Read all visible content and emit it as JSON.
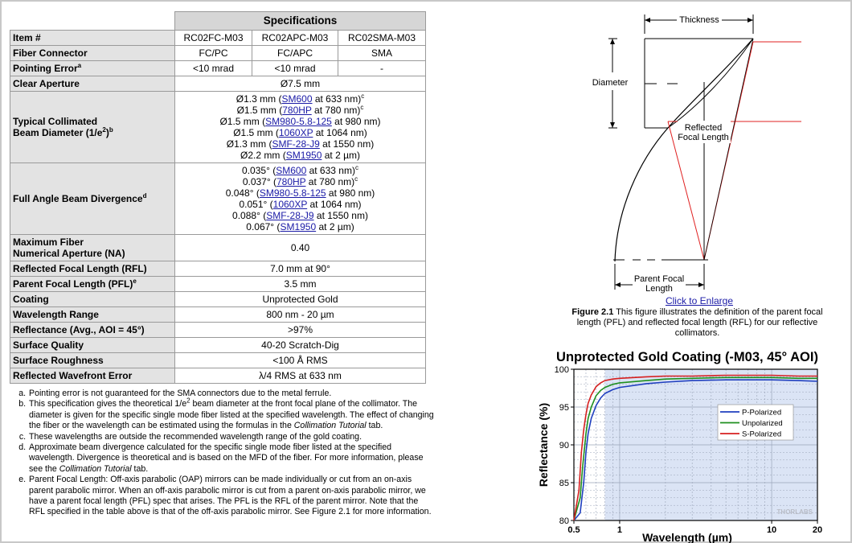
{
  "spec_table": {
    "title": "Specifications",
    "item_label": "Item #",
    "items": [
      "RC02FC-M03",
      "RC02APC-M03",
      "RC02SMA-M03"
    ],
    "rows": {
      "fiber_connector": {
        "label": "Fiber Connector",
        "values": [
          "FC/PC",
          "FC/APC",
          "SMA"
        ]
      },
      "pointing_error": {
        "label": "Pointing Error",
        "sup": "a",
        "values": [
          "<10 mrad",
          "<10 mrad",
          "-"
        ]
      },
      "clear_aperture": {
        "label": "Clear Aperture",
        "value": "Ø7.5 mm"
      },
      "beam_diameter": {
        "label_line1": "Typical Collimated",
        "label_line2": "Beam Diameter (1/e",
        "label_sup2": "2",
        "label_end": ")",
        "label_sup": "b",
        "lines": [
          {
            "pre": "Ø1.3 mm (",
            "link": "SM600",
            "post": " at 633 nm)",
            "sup": "c"
          },
          {
            "pre": "Ø1.5 mm (",
            "link": "780HP",
            "post": " at 780 nm)",
            "sup": "c"
          },
          {
            "pre": "Ø1.5 mm (",
            "link": "SM980-5.8-125",
            "post": " at 980 nm)",
            "sup": ""
          },
          {
            "pre": "Ø1.5 mm (",
            "link": "1060XP",
            "post": " at 1064 nm)",
            "sup": ""
          },
          {
            "pre": "Ø1.3 mm (",
            "link": "SMF-28-J9",
            "post": " at 1550 nm)",
            "sup": ""
          },
          {
            "pre": "Ø2.2 mm (",
            "link": "SM1950",
            "post": " at 2 µm)",
            "sup": ""
          }
        ]
      },
      "divergence": {
        "label": "Full Angle Beam Divergence",
        "sup": "d",
        "lines": [
          {
            "pre": "0.035° (",
            "link": "SM600",
            "post": " at 633 nm)",
            "sup": "c"
          },
          {
            "pre": "0.037° (",
            "link": "780HP",
            "post": " at 780 nm)",
            "sup": "c"
          },
          {
            "pre": "0.048° (",
            "link": "SM980-5.8-125",
            "post": " at 980 nm)",
            "sup": ""
          },
          {
            "pre": "0.051° (",
            "link": "1060XP",
            "post": " at 1064 nm)",
            "sup": ""
          },
          {
            "pre": "0.088° (",
            "link": "SMF-28-J9",
            "post": " at 1550 nm)",
            "sup": ""
          },
          {
            "pre": "0.067° (",
            "link": "SM1950",
            "post": " at 2 µm)",
            "sup": ""
          }
        ]
      },
      "na": {
        "label_line1": "Maximum Fiber",
        "label_line2": "Numerical Aperture (NA)",
        "value": "0.40"
      },
      "rfl": {
        "label": "Reflected Focal Length (RFL)",
        "value": "7.0 mm at 90°"
      },
      "pfl": {
        "label": "Parent Focal Length (PFL)",
        "sup": "e",
        "value": "3.5 mm"
      },
      "coating": {
        "label": "Coating",
        "value": "Unprotected Gold"
      },
      "wavelength": {
        "label": "Wavelength Range",
        "value": "800 nm - 20 µm"
      },
      "reflectance": {
        "label": "Reflectance (Avg., AOI = 45°)",
        "value": ">97%"
      },
      "surface_quality": {
        "label": "Surface Quality",
        "value": "40-20 Scratch-Dig"
      },
      "roughness": {
        "label": "Surface Roughness",
        "value": "<100 Å RMS"
      },
      "wavefront": {
        "label": "Reflected Wavefront Error",
        "value": "λ/4 RMS at 633 nm"
      }
    }
  },
  "notes": {
    "a": "Pointing error is not guaranteed for the SMA connectors due to the metal ferrule.",
    "b1": "This specification gives the theoretical 1/e",
    "b_sup": "2",
    "b2": " beam diameter at the front focal plane of the collimator. The diameter is given for the specific single mode fiber listed at the specified wavelength. The effect of changing the fiber or the wavelength can be estimated using the formulas in the ",
    "b_em": "Collimation Tutorial",
    "b3": " tab.",
    "c": "These wavelengths are outside the recommended wavelength range of the gold coating.",
    "d1": "Approximate beam divergence calculated for the specific single mode fiber listed at the specified wavelength. Divergence is theoretical and is based on the MFD of the fiber. For more information, please see the ",
    "d_em": "Collimation Tutorial",
    "d2": " tab.",
    "e": "Parent Focal Length: Off-axis parabolic (OAP) mirrors can be made individually or cut from an on-axis parent parabolic mirror. When an off-axis parabolic mirror is cut from a parent on-axis parabolic mirror, we have a parent focal length (PFL) spec that arises. The PFL is the RFL of the parent mirror. Note that the RFL specified in the table above is that of the off-axis parabolic mirror. See Figure 2.1 for more information."
  },
  "figure": {
    "thickness": "Thickness",
    "diameter": "Diameter",
    "rfl_line1": "Reflected",
    "rfl_line2": "Focal Length",
    "pfl_line1": "Parent Focal",
    "pfl_line2": "Length",
    "click": "Click to Enlarge",
    "caption_bold": "Figure 2.1",
    "caption_text": "  This figure illustrates the definition of the parent focal length (PFL) and reflected focal length (RFL) for our reflective collimators.",
    "colors": {
      "ray": "#e02020",
      "line": "#000000"
    }
  },
  "chart_data": {
    "type": "line",
    "title": "Unprotected Gold Coating (-M03, 45° AOI)",
    "xlabel": "Wavelength (µm)",
    "ylabel": "Reflectance (%)",
    "x_scale": "log",
    "xlim": [
      0.5,
      20
    ],
    "ylim": [
      80,
      100
    ],
    "xticks": [
      0.5,
      1,
      10,
      20
    ],
    "yticks": [
      80,
      85,
      90,
      95,
      100
    ],
    "grid": true,
    "shaded_region": [
      0.8,
      20
    ],
    "legend_position": "right",
    "watermark": "THORLABS",
    "series": [
      {
        "name": "P-Polarized",
        "color": "#1f3fbf",
        "x": [
          0.5,
          0.55,
          0.58,
          0.6,
          0.62,
          0.65,
          0.7,
          0.75,
          0.8,
          0.9,
          1,
          1.5,
          2,
          3,
          5,
          10,
          15,
          20
        ],
        "y": [
          80,
          81,
          85,
          89,
          91.5,
          93.5,
          95.2,
          96.2,
          96.8,
          97.3,
          97.6,
          98.1,
          98.3,
          98.5,
          98.6,
          98.6,
          98.5,
          98.4
        ]
      },
      {
        "name": "Unpolarized",
        "color": "#1f8f1f",
        "x": [
          0.5,
          0.55,
          0.57,
          0.6,
          0.62,
          0.65,
          0.7,
          0.75,
          0.8,
          0.9,
          1,
          1.5,
          2,
          3,
          5,
          10,
          15,
          20
        ],
        "y": [
          80,
          83,
          87,
          91.5,
          93.5,
          95,
          96.5,
          97.2,
          97.6,
          98,
          98.2,
          98.5,
          98.7,
          98.8,
          98.9,
          98.9,
          98.8,
          98.8
        ]
      },
      {
        "name": "S-Polarized",
        "color": "#d62020",
        "x": [
          0.5,
          0.54,
          0.56,
          0.58,
          0.6,
          0.62,
          0.65,
          0.7,
          0.75,
          0.8,
          0.9,
          1,
          1.5,
          2,
          3,
          5,
          10,
          15,
          20
        ],
        "y": [
          80,
          84,
          89,
          92,
          94,
          95.5,
          96.6,
          97.7,
          98.2,
          98.5,
          98.7,
          98.8,
          99,
          99.1,
          99.1,
          99.2,
          99.2,
          99.1,
          99.1
        ]
      }
    ]
  }
}
